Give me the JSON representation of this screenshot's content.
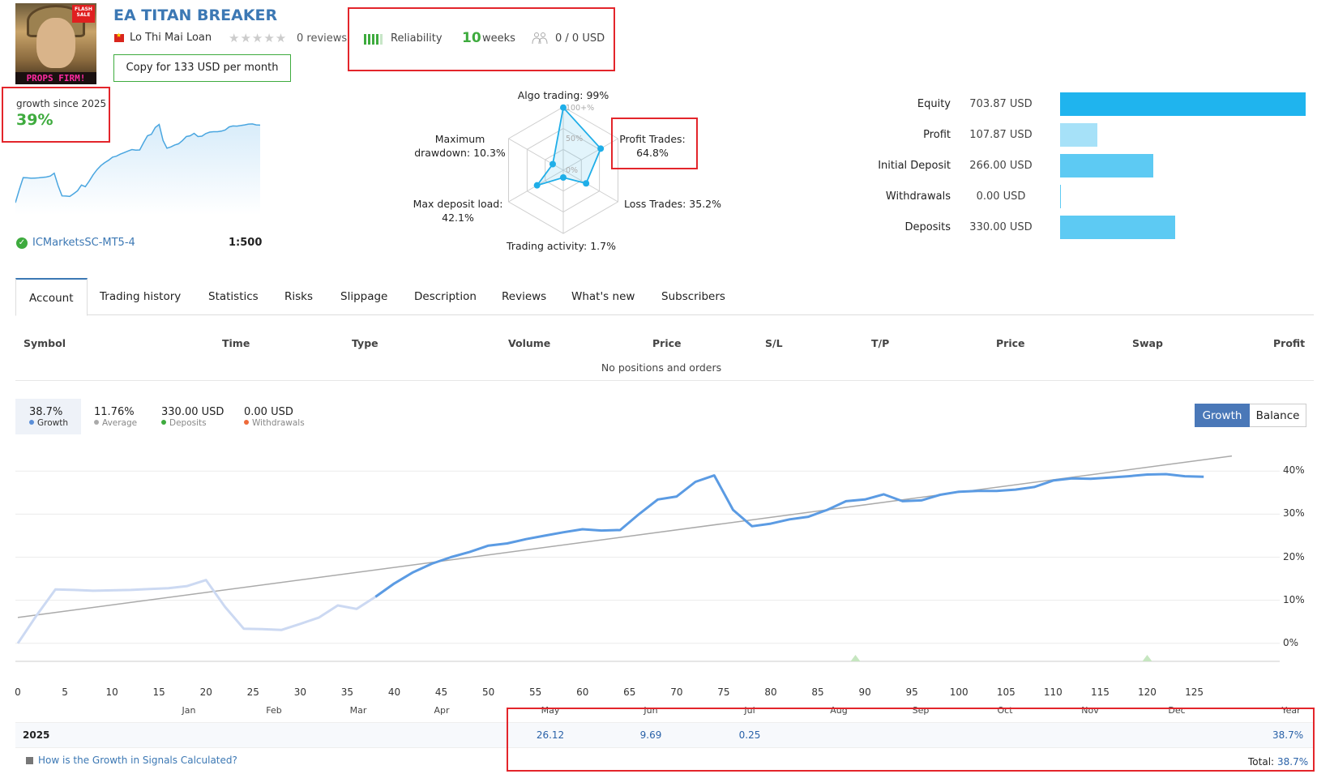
{
  "header": {
    "title": "EA TITAN BREAKER",
    "avatar_text": "PROPS FIRM!",
    "avatar_badge": "FLASH SALE",
    "author": "Lo Thi Mai Loan",
    "reviews": "0 reviews",
    "copy_button": "Copy for 133 USD per month",
    "reliability_label": "Reliability",
    "weeks_value": "10",
    "weeks_label": "weeks",
    "subscribers_value": "0 / 0 USD"
  },
  "growth_summary": {
    "label": "growth since 2025",
    "value": "39%",
    "broker": "ICMarketsSC-MT5-4",
    "leverage": "1:500"
  },
  "radar": {
    "algo_trading": "Algo trading: 99%",
    "profit_trades": "Profit Trades:\n64.8%",
    "loss_trades": "Loss Trades: 35.2%",
    "trading_activity": "Trading activity: 1.7%",
    "max_deposit_load": "Max deposit load:\n42.1%",
    "max_drawdown": "Maximum\ndrawdown: 10.3%",
    "ring_100": "100+%",
    "ring_50": "50%",
    "ring_0": "0%",
    "values": [
      0.99,
      0.648,
      0.352,
      0.017,
      0.421,
      0.103
    ]
  },
  "balance_bars": [
    {
      "label": "Equity",
      "value": "703.87 USD",
      "fraction": 1.0,
      "color": "#1fb4ee"
    },
    {
      "label": "Profit",
      "value": "107.87 USD",
      "fraction": 0.153,
      "color": "#a6e1f8"
    },
    {
      "label": "Initial Deposit",
      "value": "266.00 USD",
      "fraction": 0.378,
      "color": "#5dcaf3"
    },
    {
      "label": "Withdrawals",
      "value": "0.00 USD",
      "fraction": 0.0,
      "color": "#5dcaf3"
    },
    {
      "label": "Deposits",
      "value": "330.00 USD",
      "fraction": 0.469,
      "color": "#5dcaf3"
    }
  ],
  "tabs": [
    "Account",
    "Trading history",
    "Statistics",
    "Risks",
    "Slippage",
    "Description",
    "Reviews",
    "What's new",
    "Subscribers"
  ],
  "positions": {
    "columns": [
      "Symbol",
      "Time",
      "Type",
      "Volume",
      "Price",
      "S/L",
      "T/P",
      "Price",
      "Swap",
      "Profit"
    ],
    "empty_text": "No positions and orders"
  },
  "legend": [
    {
      "value": "38.7%",
      "label": "Growth",
      "color": "#5b8fd8"
    },
    {
      "value": "11.76%",
      "label": "Average",
      "color": "#aaaaaa"
    },
    {
      "value": "330.00 USD",
      "label": "Deposits",
      "color": "#3eab3e"
    },
    {
      "value": "0.00 USD",
      "label": "Withdrawals",
      "color": "#ee6a3a"
    }
  ],
  "toggle": {
    "growth": "Growth",
    "balance": "Balance"
  },
  "chart_data": {
    "type": "line",
    "x_ticks": [
      "0",
      "5",
      "10",
      "15",
      "20",
      "25",
      "30",
      "35",
      "40",
      "45",
      "50",
      "55",
      "60",
      "65",
      "70",
      "75",
      "80",
      "85",
      "90",
      "95",
      "100",
      "105",
      "110",
      "115",
      "120",
      "125"
    ],
    "y_ticks": [
      "40%",
      "30%",
      "20%",
      "10%",
      "0%"
    ],
    "months": [
      "Jan",
      "Feb",
      "Mar",
      "Apr",
      "May",
      "Jun",
      "Jul",
      "Aug",
      "Sep",
      "Oct",
      "Nov",
      "Dec",
      "Year"
    ],
    "ylim": [
      -4,
      44
    ],
    "xlim": [
      0,
      129
    ],
    "series": [
      {
        "name": "Growth",
        "x": [
          0,
          2,
          4,
          6,
          8,
          10,
          12,
          14,
          16,
          18,
          20,
          22,
          24,
          26,
          28,
          30,
          32,
          34,
          36,
          38,
          40,
          42,
          44,
          46,
          48,
          50,
          52,
          54,
          56,
          58,
          60,
          62,
          64,
          66,
          68,
          70,
          72,
          74,
          76,
          78,
          80,
          82,
          84,
          86,
          88,
          90,
          92,
          94,
          96,
          98,
          100,
          102,
          104,
          106,
          108,
          110,
          112,
          114,
          116,
          118,
          120,
          122,
          124,
          126
        ],
        "y": [
          0,
          6.5,
          12.5,
          12.4,
          12.2,
          12.3,
          12.4,
          12.6,
          12.8,
          13.3,
          14.7,
          8.5,
          3.4,
          3.3,
          3.1,
          4.5,
          6,
          8.8,
          8,
          10.8,
          13.9,
          16.5,
          18.5,
          20,
          21.2,
          22.7,
          23.2,
          24.2,
          25,
          25.8,
          26.5,
          26.2,
          26.3,
          30,
          33.4,
          34.1,
          37.5,
          39,
          31,
          27.2,
          27.8,
          28.8,
          29.4,
          31,
          33,
          33.4,
          34.6,
          33,
          33.2,
          34.5,
          35.2,
          35.4,
          35.4,
          35.7,
          36.3,
          37.8,
          38.3,
          38.2,
          38.5,
          38.8,
          39.2,
          39.3,
          38.8,
          38.7
        ]
      },
      {
        "name": "Average",
        "x": [
          0,
          129
        ],
        "y": [
          6,
          43.5
        ]
      }
    ],
    "markers_x": [
      89,
      120
    ]
  },
  "yearly": {
    "year": "2025",
    "months": [
      {
        "name": "May",
        "value": "26.12"
      },
      {
        "name": "Jun",
        "value": "9.69"
      },
      {
        "name": "Jul",
        "value": "0.25"
      }
    ],
    "year_value": "38.7%",
    "how_link": "How is the Growth in Signals Calculated?",
    "total_label": "Total:",
    "total_value": "38.7%"
  }
}
